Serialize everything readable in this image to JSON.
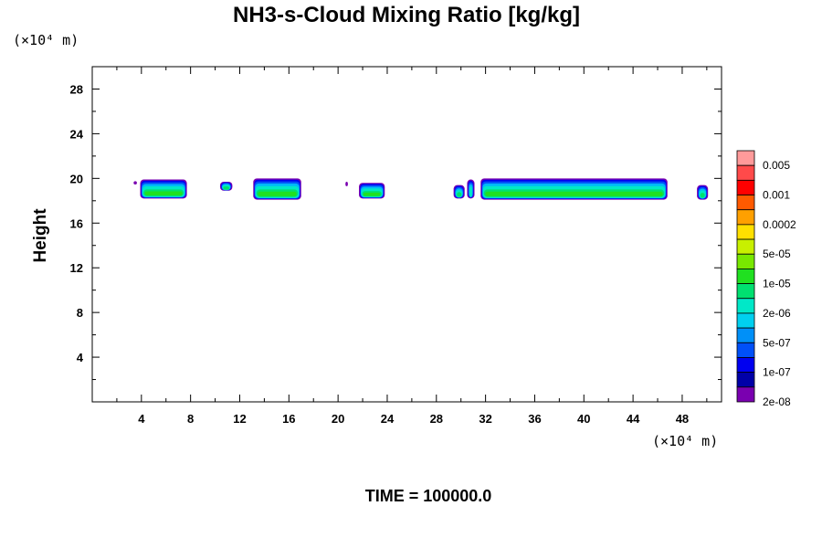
{
  "chart_data": {
    "type": "heatmap",
    "title": "NH3-s-Cloud Mixing Ratio [kg/kg]",
    "y_unit": "(×10⁴ m)",
    "x_unit": "(×10⁴ m)",
    "ylabel": "Height",
    "footer": "TIME = 100000.0",
    "xlim": [
      0,
      51.2
    ],
    "ylim": [
      0,
      30
    ],
    "x_ticks": [
      "4",
      "8",
      "12",
      "16",
      "20",
      "24",
      "28",
      "32",
      "36",
      "40",
      "44",
      "48"
    ],
    "y_ticks": [
      "4",
      "8",
      "12",
      "16",
      "20",
      "24",
      "28"
    ],
    "colorbar": {
      "labels": [
        "0.005",
        "0.001",
        "0.0002",
        "5e-05",
        "1e-05",
        "2e-06",
        "5e-07",
        "1e-07",
        "2e-08"
      ],
      "colors_top_to_bottom": [
        "#ff9a9a",
        "#ff4a4a",
        "#ff0000",
        "#ff5a00",
        "#ffa000",
        "#ffe000",
        "#c8f000",
        "#78e800",
        "#20e020",
        "#00e070",
        "#00e8c8",
        "#00d0f0",
        "#0090f8",
        "#0050f8",
        "#0000f0",
        "#0000a8",
        "#7a00b0"
      ]
    },
    "cloud_segments": [
      {
        "x_start": 3.9,
        "x_end": 7.7,
        "bottom": 18.2,
        "top": 19.9
      },
      {
        "x_start": 10.4,
        "x_end": 11.4,
        "bottom": 18.9,
        "top": 19.7
      },
      {
        "x_start": 13.1,
        "x_end": 17.0,
        "bottom": 18.1,
        "top": 20.0
      },
      {
        "x_start": 20.6,
        "x_end": 20.8,
        "bottom": 19.3,
        "top": 19.7
      },
      {
        "x_start": 21.7,
        "x_end": 23.8,
        "bottom": 18.2,
        "top": 19.6
      },
      {
        "x_start": 29.4,
        "x_end": 30.3,
        "bottom": 18.2,
        "top": 19.4
      },
      {
        "x_start": 30.5,
        "x_end": 31.1,
        "bottom": 18.2,
        "top": 19.9
      },
      {
        "x_start": 31.6,
        "x_end": 46.8,
        "bottom": 18.1,
        "top": 20.0
      },
      {
        "x_start": 49.2,
        "x_end": 50.1,
        "bottom": 18.1,
        "top": 19.4
      }
    ],
    "isolated_points": [
      {
        "x": 3.5,
        "y": 19.6
      }
    ]
  }
}
